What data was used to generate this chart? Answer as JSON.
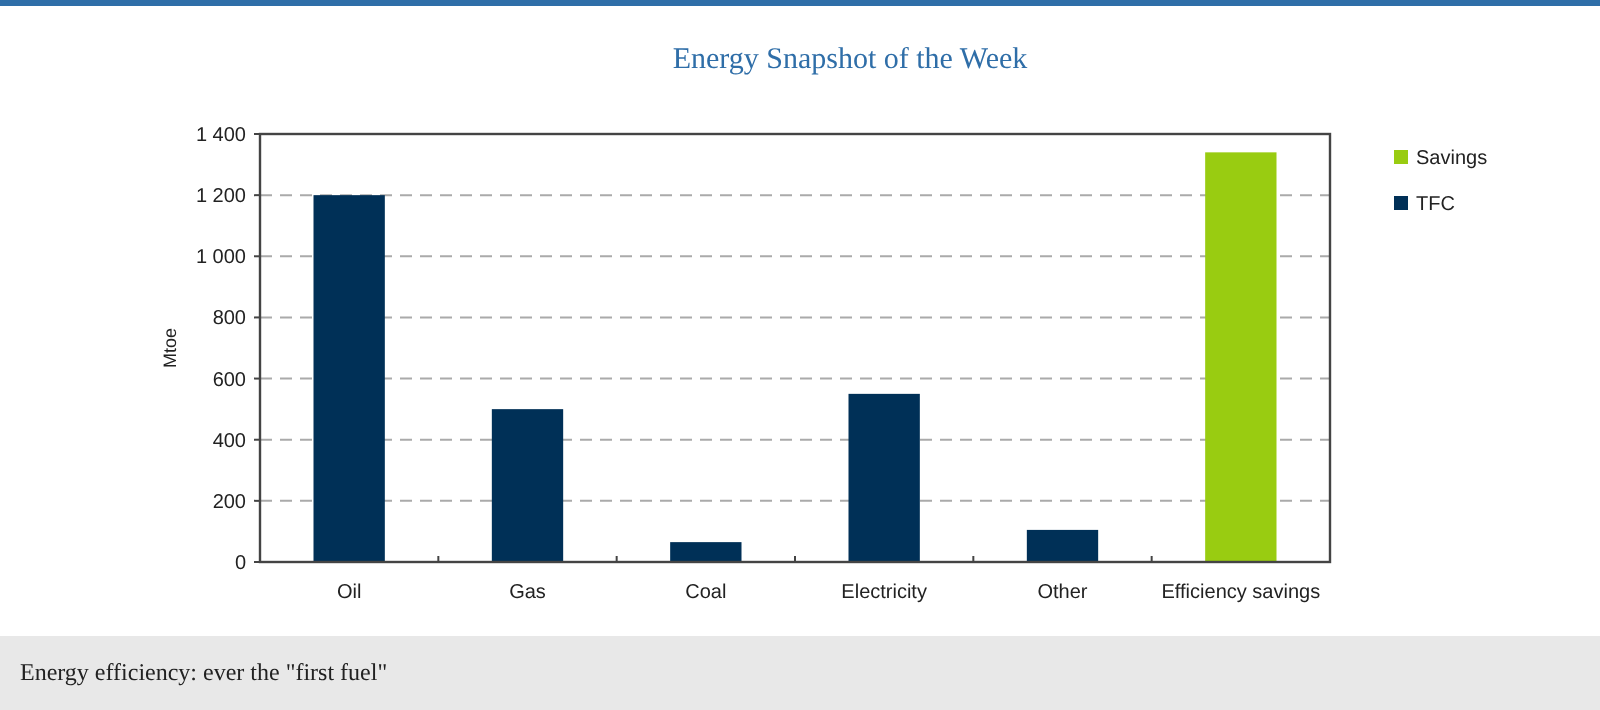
{
  "chart_data": {
    "type": "bar",
    "title": "Energy Snapshot of the Week",
    "ylabel": "Mtoe",
    "categories": [
      "Oil",
      "Gas",
      "Coal",
      "Electricity",
      "Other",
      "Efficiency savings"
    ],
    "series": [
      {
        "name": "Savings",
        "color": "#99cc11",
        "values": [
          null,
          null,
          null,
          null,
          null,
          1340
        ]
      },
      {
        "name": "TFC",
        "color": "#003057",
        "values": [
          1200,
          500,
          65,
          550,
          105,
          null
        ]
      }
    ],
    "ylim": [
      0,
      1400
    ],
    "yticks": [
      0,
      200,
      400,
      600,
      800,
      {
        "value": 1000,
        "label": "1 000"
      },
      {
        "value": 1200,
        "label": "1 200"
      },
      {
        "value": 1400,
        "label": "1 400"
      }
    ],
    "grid": "y",
    "legend": "right",
    "annotations": [
      "Energy efficiency: ever the \"first fuel\""
    ]
  }
}
